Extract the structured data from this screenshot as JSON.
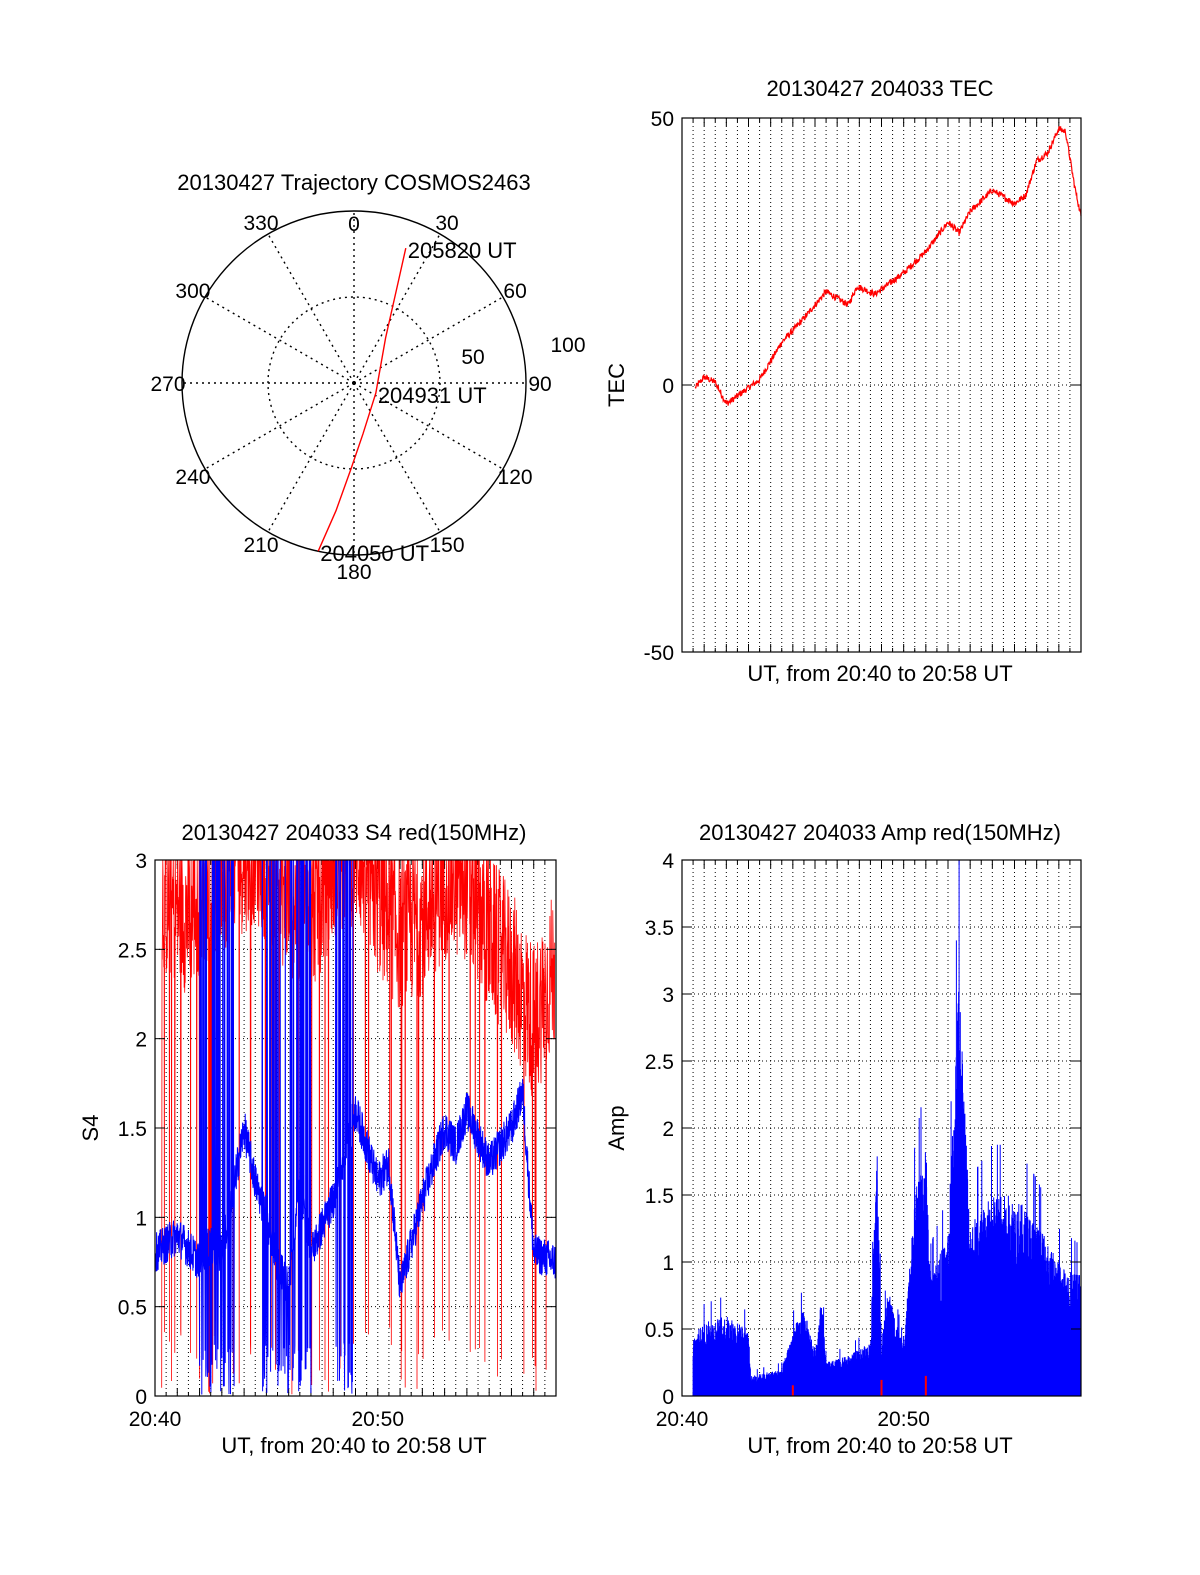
{
  "colors": {
    "red": "#ff0000",
    "blue": "#0000ff",
    "axis": "#000000",
    "grid": "#000000"
  },
  "chart_data": [
    {
      "type": "polar",
      "title": "20130427 Trajectory COSMOS2463",
      "angle_labels": [
        "0",
        "30",
        "60",
        "90",
        "120",
        "150",
        "180",
        "210",
        "240",
        "270",
        "300",
        "330"
      ],
      "radius_labels": [
        "50",
        "100"
      ],
      "r_max": 100,
      "series": [
        {
          "points": [
            {
              "az": 192,
              "r": 100
            },
            {
              "az": 188,
              "r": 75
            },
            {
              "az": 182,
              "r": 50
            },
            {
              "az": 170,
              "r": 30
            },
            {
              "az": 115,
              "r": 14
            },
            {
              "az": 35,
              "r": 32
            },
            {
              "az": 24,
              "r": 62
            },
            {
              "az": 21,
              "r": 84
            }
          ]
        }
      ],
      "annotations": [
        {
          "text": "205820 UT",
          "az": 21,
          "r": 84
        },
        {
          "text": "204931 UT",
          "az": 115,
          "r": 14
        },
        {
          "text": "204050 UT",
          "az": 192,
          "r": 100
        }
      ]
    },
    {
      "type": "line",
      "title": "20130427 204033 TEC",
      "xlabel": "UT, from 20:40 to 20:58 UT",
      "ylabel": "TEC",
      "xlim": [
        0,
        18
      ],
      "ylim": [
        -50,
        50
      ],
      "yticks": [
        "50",
        "0",
        "-50"
      ],
      "ytick_values": [
        50,
        0,
        -50
      ],
      "grid": "vertical every 0.5 min, horizontal at 0",
      "series": [
        {
          "x": [
            0.6,
            1.0,
            1.5,
            2.0,
            2.2,
            3.0,
            3.5,
            4.5,
            5.5,
            6.5,
            7.5,
            7.9,
            8.7,
            10.0,
            11.0,
            12.0,
            12.5,
            13.0,
            14.0,
            15.0,
            15.5,
            16.0,
            16.5,
            17.0,
            17.3,
            17.7,
            18.0
          ],
          "y": [
            -0.5,
            1.5,
            0.5,
            -3.5,
            -3.0,
            -0.5,
            1.0,
            8.0,
            12.5,
            17.5,
            15.0,
            18.5,
            17.0,
            21.0,
            25.0,
            30.5,
            28.5,
            32.5,
            36.5,
            34.0,
            35.5,
            42.0,
            43.5,
            48.0,
            47.5,
            37.5,
            31.5
          ]
        }
      ]
    },
    {
      "type": "line",
      "title": "20130427 204033 S4 red(150MHz)",
      "xlabel": "UT, from 20:40 to 20:58 UT",
      "ylabel": "S4",
      "xlim": [
        0,
        18
      ],
      "ylim": [
        0,
        3
      ],
      "xticks": [
        "20:40",
        "20:50"
      ],
      "yticks": [
        "3",
        "2.5",
        "2",
        "1.5",
        "1",
        "0.5",
        "0"
      ],
      "ytick_values": [
        3,
        2.5,
        2,
        1.5,
        1,
        0.5,
        0
      ],
      "series": [
        {
          "color": "red",
          "x": [
            0.3,
            1.5,
            2.5,
            3.5,
            4.5,
            6.0,
            7.0,
            8.0,
            9.0,
            10.0,
            11.0,
            12.0,
            13.0,
            14.0,
            15.0,
            16.0,
            17.0,
            17.9
          ],
          "y": [
            2.7,
            2.6,
            2.8,
            2.9,
            3.0,
            2.7,
            2.6,
            2.9,
            3.0,
            2.7,
            2.5,
            2.6,
            2.8,
            2.8,
            2.5,
            2.3,
            2.0,
            2.3
          ]
        },
        {
          "color": "blue",
          "x": [
            0.0,
            1.0,
            2.0,
            2.5,
            3.0,
            4.0,
            4.5,
            5.0,
            5.5,
            6.0,
            6.5,
            7.0,
            8.0,
            9.0,
            10.0,
            10.5,
            11.0,
            12.0,
            13.0,
            13.5,
            14.0,
            15.0,
            16.0,
            16.5,
            17.0,
            18.0
          ],
          "y": [
            0.8,
            0.9,
            0.75,
            0.85,
            0.8,
            1.5,
            1.2,
            1.0,
            0.75,
            0.6,
            1.2,
            0.8,
            1.1,
            1.6,
            1.2,
            1.3,
            0.6,
            1.1,
            1.5,
            1.4,
            1.6,
            1.3,
            1.5,
            1.7,
            0.8,
            0.75
          ]
        }
      ]
    },
    {
      "type": "area",
      "title": "20130427 204033 Amp red(150MHz)",
      "xlabel": "UT, from 20:40 to 20:58 UT",
      "ylabel": "Amp",
      "xlim": [
        0,
        18
      ],
      "ylim": [
        0,
        4
      ],
      "xticks": [
        "20:40",
        "20:50"
      ],
      "yticks": [
        "4",
        "3.5",
        "3",
        "2.5",
        "2",
        "1.5",
        "1",
        "0.5",
        "0"
      ],
      "ytick_values": [
        4,
        3.5,
        3,
        2.5,
        2,
        1.5,
        1,
        0.5,
        0
      ],
      "series": [
        {
          "color": "blue",
          "x": [
            0.5,
            1.0,
            2.0,
            2.5,
            3.0,
            3.1,
            4.5,
            5.0,
            5.5,
            6.0,
            6.3,
            6.5,
            7.5,
            8.5,
            8.8,
            9.0,
            9.3,
            10.0,
            10.5,
            11.0,
            11.2,
            12.0,
            12.5,
            13.0,
            14.0,
            15.0,
            16.0,
            17.0,
            18.0
          ],
          "y": [
            0.45,
            0.55,
            0.6,
            0.55,
            0.5,
            0.15,
            0.2,
            0.5,
            0.65,
            0.35,
            0.75,
            0.25,
            0.3,
            0.4,
            1.9,
            0.4,
            0.8,
            0.35,
            1.5,
            1.9,
            0.9,
            1.2,
            3.2,
            1.3,
            1.5,
            1.5,
            1.3,
            1.0,
            0.9
          ]
        },
        {
          "color": "red",
          "x": [
            5.0,
            9.0,
            11.0
          ],
          "y": [
            0.08,
            0.12,
            0.15
          ]
        }
      ]
    }
  ]
}
